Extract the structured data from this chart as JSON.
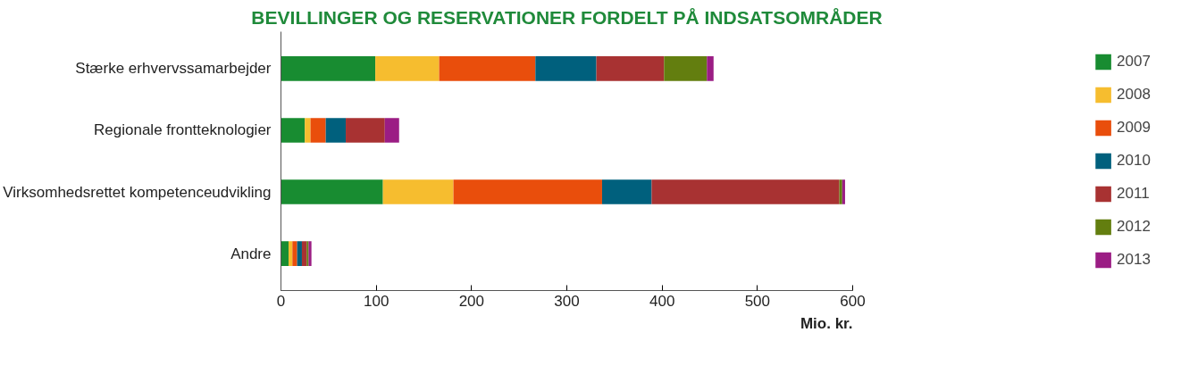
{
  "chart_data": {
    "type": "bar",
    "orientation": "horizontal",
    "stacked": true,
    "title": "BEVILLINGER OG RESERVATIONER FORDELT PÅ INDSATSOMRÅDER",
    "xlabel": "Mio. kr.",
    "categories": [
      "Stærke erhvervssamarbejder",
      "Regionale frontteknologier",
      "Virksomhedsrettet kompetenceudvikling",
      "Andre"
    ],
    "series": [
      {
        "name": "2007",
        "color": "#188c31",
        "values": [
          99,
          25,
          107,
          8
        ]
      },
      {
        "name": "2008",
        "color": "#f6bd2f",
        "values": [
          67,
          6,
          74,
          4
        ]
      },
      {
        "name": "2009",
        "color": "#e94e0c",
        "values": [
          101,
          16,
          156,
          5
        ]
      },
      {
        "name": "2010",
        "color": "#00607d",
        "values": [
          64,
          21,
          52,
          5
        ]
      },
      {
        "name": "2011",
        "color": "#a83232",
        "values": [
          71,
          41,
          197,
          5
        ]
      },
      {
        "name": "2012",
        "color": "#637e0f",
        "values": [
          45,
          0,
          3,
          2
        ]
      },
      {
        "name": "2013",
        "color": "#9b1d84",
        "values": [
          7,
          15,
          3,
          3
        ]
      }
    ],
    "xlim": [
      0,
      600
    ],
    "xticks": [
      0,
      100,
      200,
      300,
      400,
      500,
      600
    ],
    "grid": false,
    "legend": "right"
  }
}
